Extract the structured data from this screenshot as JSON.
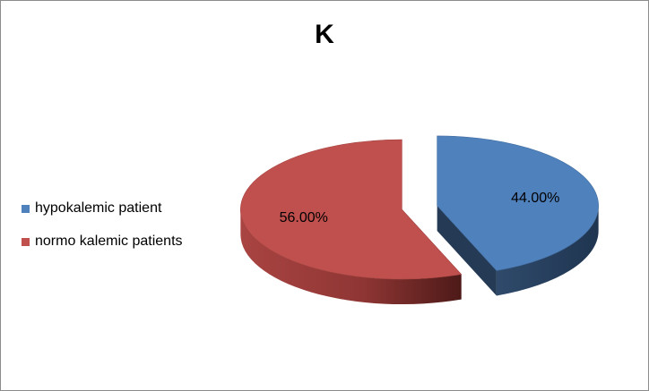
{
  "chart_data": {
    "type": "pie",
    "title": "K",
    "categories": [
      "hypokalemic patient",
      "normo kalemic patients"
    ],
    "values": [
      44.0,
      56.0
    ],
    "data_labels": [
      "44.00%",
      "56.00%"
    ],
    "colors": [
      "#4f81bd",
      "#c0504d"
    ],
    "style": "3d-exploded",
    "legend": "left"
  }
}
